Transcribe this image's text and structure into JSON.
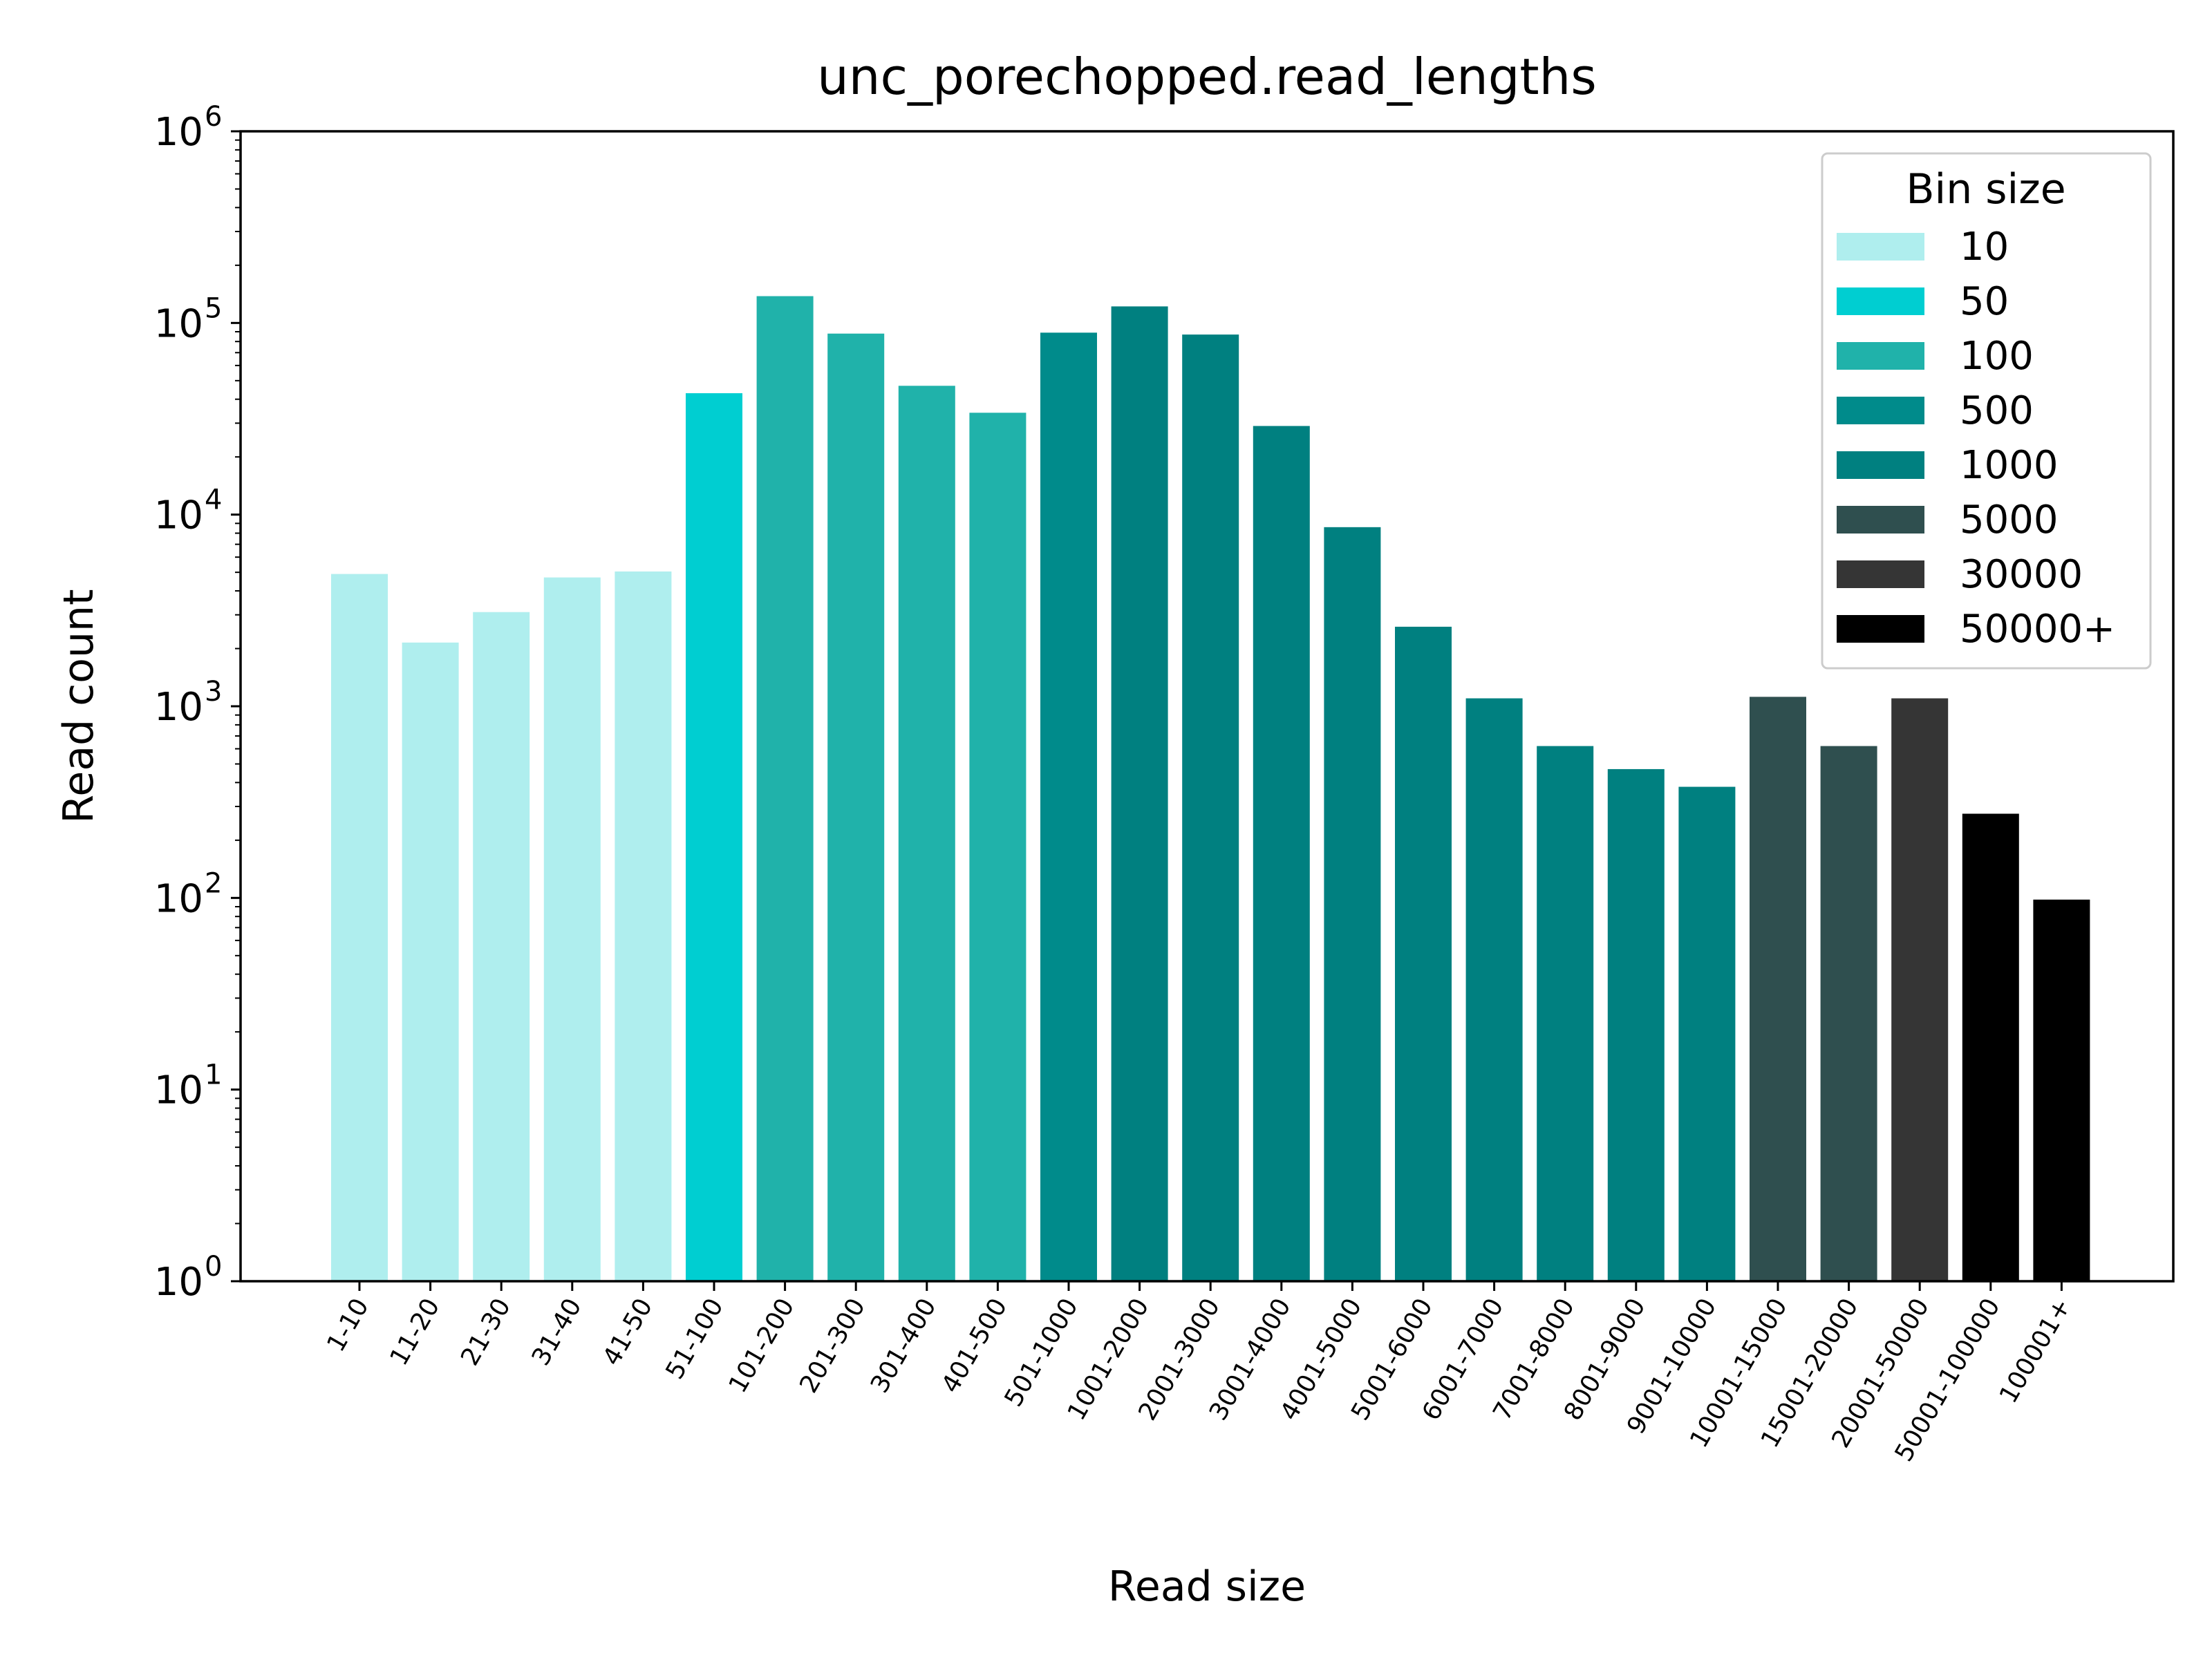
{
  "chart_data": {
    "type": "bar",
    "title": "unc_porechopped.read_lengths",
    "xlabel": "Read size",
    "ylabel": "Read count",
    "yscale": "log",
    "ylim": [
      1,
      1000000
    ],
    "yticks": [
      {
        "value": 1,
        "base": "10",
        "exp": "0"
      },
      {
        "value": 10,
        "base": "10",
        "exp": "1"
      },
      {
        "value": 100,
        "base": "10",
        "exp": "2"
      },
      {
        "value": 1000,
        "base": "10",
        "exp": "3"
      },
      {
        "value": 10000,
        "base": "10",
        "exp": "4"
      },
      {
        "value": 100000,
        "base": "10",
        "exp": "5"
      },
      {
        "value": 1000000,
        "base": "10",
        "exp": "6"
      }
    ],
    "grid": false,
    "legend_title": "Bin size",
    "legend_position": "top-right",
    "legend": [
      {
        "label": "10",
        "color": "#afeeee"
      },
      {
        "label": "50",
        "color": "#00ced1"
      },
      {
        "label": "100",
        "color": "#20b2aa"
      },
      {
        "label": "500",
        "color": "#008b8b"
      },
      {
        "label": "1000",
        "color": "#008080"
      },
      {
        "label": "5000",
        "color": "#2f4f4f"
      },
      {
        "label": "30000",
        "color": "#353535"
      },
      {
        "label": "50000+",
        "color": "#000000"
      }
    ],
    "categories": [
      "1-10",
      "11-20",
      "21-30",
      "31-40",
      "41-50",
      "51-100",
      "101-200",
      "201-300",
      "301-400",
      "401-500",
      "501-1000",
      "1001-2000",
      "2001-3000",
      "3001-4000",
      "4001-5000",
      "5001-6000",
      "6001-7000",
      "7001-8000",
      "8001-9000",
      "9001-10000",
      "10001-15000",
      "15001-20000",
      "20001-50000",
      "50001-100000",
      "100001+"
    ],
    "values": [
      4900,
      2150,
      3100,
      4700,
      5050,
      43000,
      138000,
      88000,
      47000,
      34000,
      89000,
      122000,
      87000,
      29000,
      8600,
      2600,
      1100,
      620,
      470,
      380,
      1120,
      620,
      1100,
      275,
      98
    ],
    "bin_group": [
      "10",
      "10",
      "10",
      "10",
      "10",
      "50",
      "100",
      "100",
      "100",
      "100",
      "500",
      "1000",
      "1000",
      "1000",
      "1000",
      "1000",
      "1000",
      "1000",
      "1000",
      "1000",
      "5000",
      "5000",
      "30000",
      "50000+",
      "50000+"
    ]
  }
}
